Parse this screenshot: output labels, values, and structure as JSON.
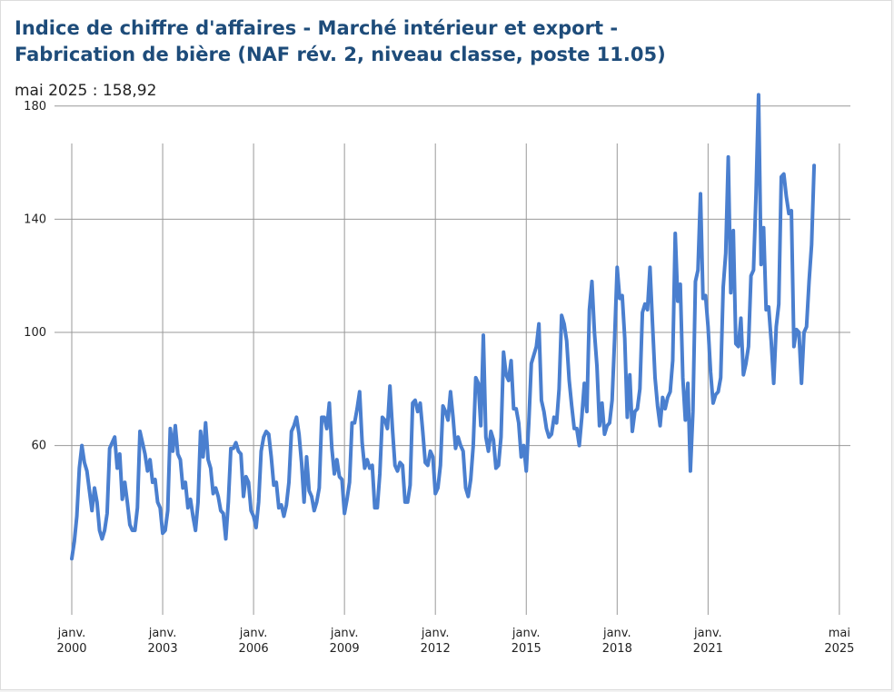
{
  "header": {
    "title_line1": "Indice de chiffre d'affaires - Marché intérieur et export -",
    "title_line2": "Fabrication de bière (NAF rév. 2, niveau classe, poste 11.05)",
    "latest_value": "mai 2025 : 158,92"
  },
  "colors": {
    "line": "#4a7fcf",
    "grid": "#999999",
    "title": "#1e4c7a"
  },
  "chart_data": {
    "type": "line",
    "title": "Indice de chiffre d'affaires - Marché intérieur et export - Fabrication de bière (NAF rév. 2, niveau classe, poste 11.05)",
    "xlabel": "",
    "ylabel": "",
    "x_start": "2000-01",
    "x_end": "2025-05",
    "frequency": "monthly",
    "ylim": [
      18,
      186
    ],
    "yticks": [
      60,
      100,
      140,
      180
    ],
    "xticks": [
      {
        "label": [
          "janv.",
          "2000"
        ],
        "date": "2000-01"
      },
      {
        "label": [
          "janv.",
          "2003"
        ],
        "date": "2003-01"
      },
      {
        "label": [
          "janv.",
          "2006"
        ],
        "date": "2006-01"
      },
      {
        "label": [
          "janv.",
          "2009"
        ],
        "date": "2009-01"
      },
      {
        "label": [
          "janv.",
          "2012"
        ],
        "date": "2012-01"
      },
      {
        "label": [
          "janv.",
          "2015"
        ],
        "date": "2015-01"
      },
      {
        "label": [
          "janv.",
          "2018"
        ],
        "date": "2018-01"
      },
      {
        "label": [
          "janv.",
          "2021"
        ],
        "date": "2021-01"
      },
      {
        "label": [
          "mai",
          "2025"
        ],
        "date": "2025-05"
      }
    ],
    "grid": true,
    "series": [
      {
        "values": [
          20,
          26,
          35,
          52,
          60,
          54,
          51,
          44,
          37,
          45,
          40,
          30,
          27,
          30,
          36,
          59,
          61,
          63,
          52,
          57,
          41,
          47,
          40,
          32,
          30,
          30,
          38,
          65,
          61,
          57,
          51,
          55,
          47,
          48,
          40,
          38,
          29,
          30,
          37,
          66,
          58,
          67,
          57,
          55,
          45,
          47,
          38,
          41,
          35,
          30,
          40,
          65,
          56,
          68,
          55,
          52,
          43,
          45,
          42,
          37,
          36,
          27,
          40,
          59,
          59,
          61,
          58,
          57,
          42,
          49,
          47,
          37,
          35,
          31,
          40,
          58,
          63,
          65,
          64,
          56,
          46,
          47,
          38,
          39,
          35,
          39,
          47,
          65,
          67,
          70,
          64,
          54,
          40,
          56,
          44,
          42,
          37,
          40,
          45,
          70,
          70,
          66,
          75,
          59,
          50,
          55,
          49,
          48,
          36,
          41,
          47,
          68,
          68,
          73,
          79,
          61,
          52,
          55,
          52,
          53,
          38,
          38,
          50,
          70,
          69,
          66,
          81,
          66,
          53,
          51,
          54,
          53,
          40,
          40,
          46,
          75,
          76,
          72,
          75,
          65,
          54,
          53,
          58,
          56,
          43,
          45,
          53,
          74,
          72,
          69,
          79,
          70,
          59,
          63,
          60,
          58,
          45,
          42,
          48,
          60,
          84,
          82,
          67,
          99,
          63,
          58,
          65,
          62,
          52,
          53,
          63,
          93,
          85,
          83,
          90,
          73,
          73,
          68,
          56,
          60,
          51,
          68,
          89,
          92,
          95,
          103,
          76,
          72,
          66,
          63,
          64,
          70,
          68,
          80,
          106,
          103,
          97,
          83,
          74,
          66,
          66,
          60,
          70,
          82,
          72,
          108,
          118,
          100,
          88,
          67,
          75,
          64,
          67,
          68,
          76,
          98,
          123,
          112,
          113,
          98,
          70,
          85,
          65,
          72,
          73,
          80,
          107,
          110,
          108,
          123,
          103,
          84,
          74,
          67,
          77,
          73,
          77,
          79,
          90,
          135,
          111,
          117,
          84,
          69,
          82,
          51,
          72,
          118,
          122,
          149,
          112,
          113,
          102,
          86,
          75,
          78,
          79,
          84,
          116,
          128,
          162,
          114,
          136,
          96,
          95,
          105,
          85,
          89,
          95,
          120,
          122,
          149,
          184,
          124,
          137,
          108,
          109,
          97,
          82,
          102,
          110,
          155,
          156,
          148,
          142,
          143,
          95,
          101,
          100,
          82,
          100,
          102,
          118,
          131,
          159
        ]
      }
    ]
  }
}
